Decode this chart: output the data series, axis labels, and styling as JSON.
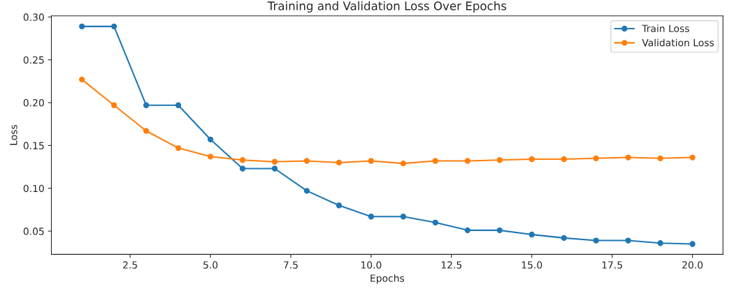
{
  "chart_data": {
    "type": "line",
    "title": "Training and Validation Loss Over Epochs",
    "xlabel": "Epochs",
    "ylabel": "Loss",
    "x": [
      1,
      2,
      3,
      4,
      5,
      6,
      7,
      8,
      9,
      10,
      11,
      12,
      13,
      14,
      15,
      16,
      17,
      18,
      19,
      20
    ],
    "series": [
      {
        "name": "Train Loss",
        "color": "#1f77b4",
        "values": [
          0.289,
          0.289,
          0.197,
          0.197,
          0.157,
          0.123,
          0.123,
          0.097,
          0.08,
          0.067,
          0.067,
          0.06,
          0.051,
          0.051,
          0.046,
          0.042,
          0.039,
          0.039,
          0.036,
          0.035
        ]
      },
      {
        "name": "Validation Loss",
        "color": "#ff7f0e",
        "values": [
          0.227,
          0.197,
          0.167,
          0.147,
          0.137,
          0.133,
          0.131,
          0.132,
          0.13,
          0.132,
          0.129,
          0.132,
          0.132,
          0.133,
          0.134,
          0.134,
          0.135,
          0.136,
          0.135,
          0.136
        ]
      }
    ],
    "xlim": [
      0.05,
      20.95
    ],
    "ylim": [
      0.0229,
      0.3013
    ],
    "xticks": [
      2.5,
      {
        "value": 5,
        "label": "5.0"
      },
      7.5,
      {
        "value": 10,
        "label": "10.0"
      },
      12.5,
      {
        "value": 15,
        "label": "15.0"
      },
      17.5,
      {
        "value": 20,
        "label": "20.0"
      }
    ],
    "yticks": [
      0.05,
      {
        "value": 0.1,
        "label": "0.10"
      },
      0.15,
      {
        "value": 0.2,
        "label": "0.20"
      },
      0.25,
      {
        "value": 0.3,
        "label": "0.30"
      }
    ],
    "marker": "circle",
    "line_style": "solid",
    "legend": "top right",
    "grid": false
  }
}
